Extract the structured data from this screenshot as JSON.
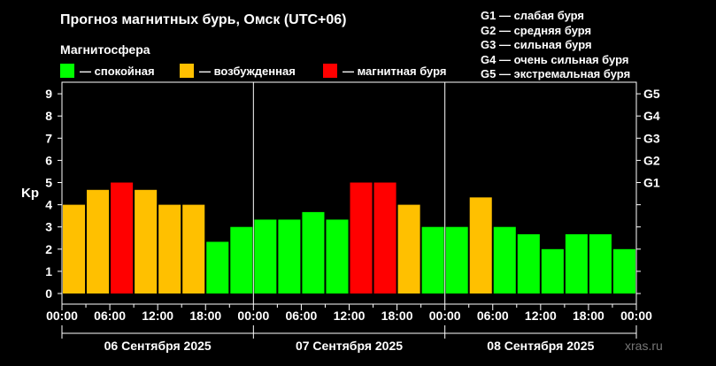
{
  "title": "Прогноз магнитных бурь, Омск (UTC+06)",
  "magnetosphere": {
    "title": "Магнитосфера",
    "legend": [
      {
        "label": "— спокойная",
        "color": "#00ff00"
      },
      {
        "label": "— возбужденная",
        "color": "#ffc000"
      },
      {
        "label": "— магнитная буря",
        "color": "#ff0000"
      }
    ]
  },
  "g_scale": [
    "G1 — слабая буря",
    "G2 — средняя буря",
    "G3 — сильная буря",
    "G4 — очень сильная буря",
    "G5 — экстремальная буря"
  ],
  "watermark": "xras.ru",
  "chart_data": {
    "type": "bar",
    "ylabel": "Kp",
    "ylim": [
      0,
      9
    ],
    "yticks": [
      "0",
      "1",
      "2",
      "3",
      "4",
      "5",
      "6",
      "7",
      "8",
      "9"
    ],
    "right_ticks": [
      {
        "value": 5,
        "label": "G1"
      },
      {
        "value": 6,
        "label": "G2"
      },
      {
        "value": 7,
        "label": "G3"
      },
      {
        "value": 8,
        "label": "G4"
      },
      {
        "value": 9,
        "label": "G5"
      }
    ],
    "xtick_labels": [
      "00:00",
      "06:00",
      "12:00",
      "18:00",
      "00:00",
      "06:00",
      "12:00",
      "18:00",
      "00:00",
      "06:00",
      "12:00",
      "18:00",
      "00:00"
    ],
    "days": [
      "06 Сентября 2025",
      "07 Сентября 2025",
      "08 Сентября 2025"
    ],
    "interval_hours": 3,
    "values": [
      4.0,
      4.67,
      5.0,
      4.67,
      4.0,
      4.0,
      2.33,
      3.0,
      3.33,
      3.33,
      3.67,
      3.33,
      5.0,
      5.0,
      4.0,
      3.0,
      3.0,
      4.33,
      3.0,
      2.67,
      2.0,
      2.67,
      2.67,
      2.0
    ],
    "colors": [
      "#ffc000",
      "#ffc000",
      "#ff0000",
      "#ffc000",
      "#ffc000",
      "#ffc000",
      "#00ff00",
      "#00ff00",
      "#00ff00",
      "#00ff00",
      "#00ff00",
      "#00ff00",
      "#ff0000",
      "#ff0000",
      "#ffc000",
      "#00ff00",
      "#00ff00",
      "#ffc000",
      "#00ff00",
      "#00ff00",
      "#00ff00",
      "#00ff00",
      "#00ff00",
      "#00ff00"
    ],
    "grid": false
  }
}
